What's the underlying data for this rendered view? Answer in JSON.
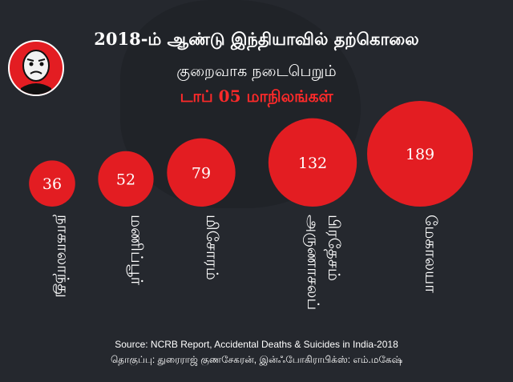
{
  "title_line1": "2018-ம் ஆண்டு இந்தியாவில் தற்கொலை",
  "title_line2": "குறைவாக நடைபெறும்",
  "title_line3": "டாப் 05 மாநிலங்கள்",
  "footer_source": "Source: NCRB Report, Accidental Deaths & Suicides in India-2018",
  "footer_credits": "தொகுப்பு: துரைராஜ் குணசேகரன், இன்ஃபோகிராபிக்ஸ்: எம்.மகேஷ்",
  "colors": {
    "background": "#25282e",
    "bubble": "#e31d22",
    "accent_text": "#ff2a2a"
  },
  "chart_data": {
    "type": "bubble",
    "categories": [
      "நாகாலாந்து",
      "மணிப்பூர்",
      "மிசோரம்",
      "அருணாசலப் பிரதேசம்",
      "மேகாலயா"
    ],
    "category_lines": [
      [
        "நாகாலாந்து"
      ],
      [
        "மணிப்பூர்"
      ],
      [
        "மிசோரம்"
      ],
      [
        "அருணாசலப்",
        "பிரதேசம்"
      ],
      [
        "மேகாலயா"
      ]
    ],
    "values": [
      36,
      52,
      79,
      132,
      189
    ]
  }
}
